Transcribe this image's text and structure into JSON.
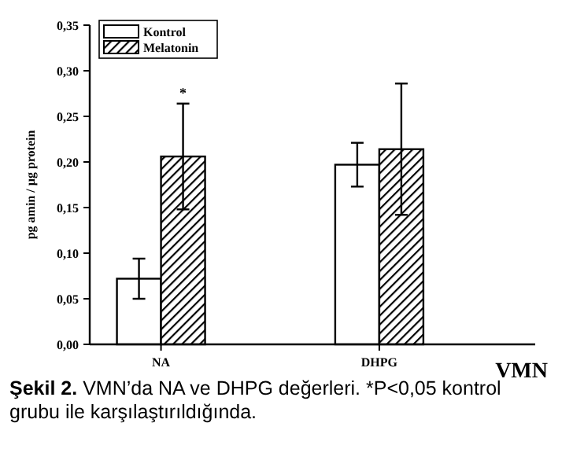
{
  "chart_data": {
    "type": "bar",
    "xlabel": "VMN",
    "ylabel": "pg amin / µg protein",
    "categories": [
      "NA",
      "DHPG"
    ],
    "series": [
      {
        "name": "Kontrol",
        "color": "#ffffff",
        "values": [
          0.072,
          0.197
        ],
        "errors": [
          0.022,
          0.024
        ]
      },
      {
        "name": "Melatonin",
        "color": "#000000",
        "values": [
          0.206,
          0.214
        ],
        "errors": [
          0.058,
          0.072
        ]
      }
    ],
    "ylim": [
      0,
      0.35
    ],
    "yticks": [
      {
        "value": 0,
        "label": "0,00"
      },
      {
        "value": 0.05,
        "label": "0,05"
      },
      {
        "value": 0.1,
        "label": "0,10"
      },
      {
        "value": 0.15,
        "label": "0,15"
      },
      {
        "value": 0.2,
        "label": "0,20"
      },
      {
        "value": 0.25,
        "label": "0,25"
      },
      {
        "value": 0.3,
        "label": "0,30"
      },
      {
        "value": 0.35,
        "label": "0,35"
      }
    ],
    "legend": "top left",
    "grid": false,
    "annotations": [
      "*",
      "Şekil 2.",
      "VMN’da NA ve DHPG değerleri. *P<0,05 kontrol grubu ile karşılaştırıldığında."
    ]
  }
}
